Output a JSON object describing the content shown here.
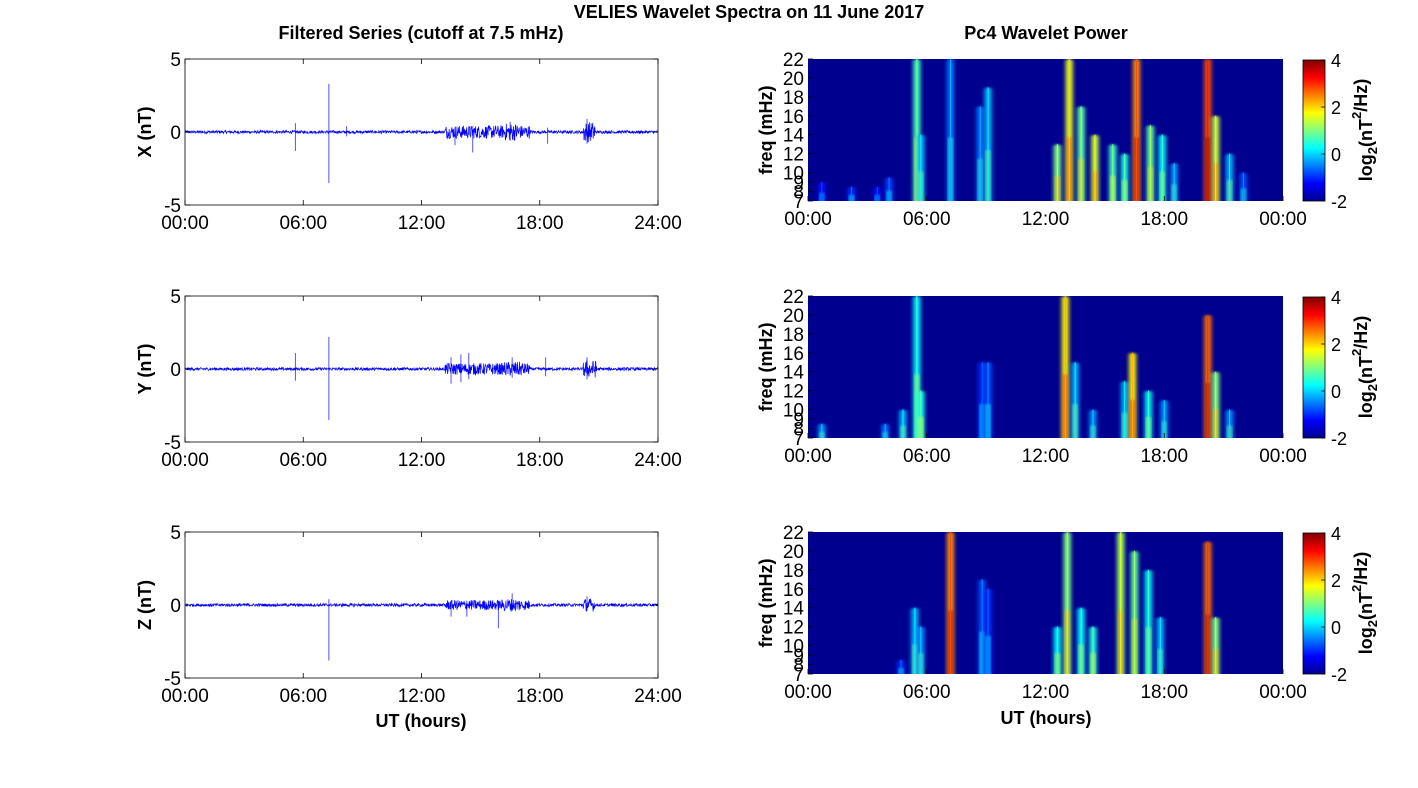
{
  "figure": {
    "title": "VELIES Wavelet Spectra on 11 June 2017",
    "left_title": "Filtered Series (cutoff at 7.5 mHz)",
    "right_title": "Pc4 Wavelet Power",
    "xlabel": "UT (hours)"
  },
  "colors": {
    "trace": "#0000ff",
    "background": "#00008f",
    "colormap": "jet"
  },
  "chart_data": [
    {
      "type": "line",
      "component": "X",
      "ylabel": "X (nT)",
      "xlim": [
        "00:00",
        "24:00"
      ],
      "ylim": [
        -5,
        5
      ],
      "xticks": [
        "00:00",
        "06:00",
        "12:00",
        "18:00",
        "24:00"
      ],
      "yticks": [
        "-5",
        "0",
        "5"
      ],
      "baseline_amplitude": 0.1,
      "spikes": [
        {
          "t": 5.6,
          "min": -1.3,
          "max": 0.6
        },
        {
          "t": 7.3,
          "min": -3.5,
          "max": 3.3
        },
        {
          "t": 8.2,
          "min": -0.3,
          "max": 0.4
        },
        {
          "t": 13.7,
          "min": -0.9,
          "max": 0.3
        },
        {
          "t": 14.6,
          "min": -1.4,
          "max": 0.4
        },
        {
          "t": 16.5,
          "min": -0.6,
          "max": 0.7
        },
        {
          "t": 18.4,
          "min": -0.8,
          "max": 0.3
        },
        {
          "t": 20.4,
          "min": -0.8,
          "max": 0.9
        }
      ],
      "active_intervals": [
        [
          13.2,
          17.5,
          0.45
        ],
        [
          16.2,
          17.0,
          0.6
        ],
        [
          20.2,
          20.8,
          0.7
        ]
      ]
    },
    {
      "type": "line",
      "component": "Y",
      "ylabel": "Y (nT)",
      "xlim": [
        "00:00",
        "24:00"
      ],
      "ylim": [
        -5,
        5
      ],
      "xticks": [
        "00:00",
        "06:00",
        "12:00",
        "18:00",
        "24:00"
      ],
      "yticks": [
        "-5",
        "0",
        "5"
      ],
      "baseline_amplitude": 0.1,
      "spikes": [
        {
          "t": 5.6,
          "min": -0.8,
          "max": 1.1
        },
        {
          "t": 7.3,
          "min": -3.5,
          "max": 2.2
        },
        {
          "t": 13.5,
          "min": -1.0,
          "max": 0.8
        },
        {
          "t": 14.0,
          "min": -0.9,
          "max": 1.0
        },
        {
          "t": 14.4,
          "min": -0.7,
          "max": 1.1
        },
        {
          "t": 16.6,
          "min": -0.6,
          "max": 0.8
        },
        {
          "t": 18.3,
          "min": -0.5,
          "max": 0.8
        },
        {
          "t": 20.4,
          "min": -0.7,
          "max": 0.8
        }
      ],
      "active_intervals": [
        [
          13.2,
          17.5,
          0.4
        ],
        [
          16.2,
          17.2,
          0.5
        ],
        [
          20.2,
          20.9,
          0.6
        ]
      ]
    },
    {
      "type": "line",
      "component": "Z",
      "ylabel": "Z (nT)",
      "xlim": [
        "00:00",
        "24:00"
      ],
      "ylim": [
        -5,
        5
      ],
      "xticks": [
        "00:00",
        "06:00",
        "12:00",
        "18:00",
        "24:00"
      ],
      "yticks": [
        "-5",
        "0",
        "5"
      ],
      "baseline_amplitude": 0.1,
      "spikes": [
        {
          "t": 7.3,
          "min": -3.8,
          "max": 0.4
        },
        {
          "t": 13.5,
          "min": -0.8,
          "max": 0.3
        },
        {
          "t": 14.3,
          "min": -0.8,
          "max": 0.3
        },
        {
          "t": 15.9,
          "min": -1.6,
          "max": 0.3
        },
        {
          "t": 16.6,
          "min": -0.4,
          "max": 0.8
        },
        {
          "t": 20.4,
          "min": -0.4,
          "max": 0.6
        }
      ],
      "active_intervals": [
        [
          13.2,
          17.5,
          0.35
        ],
        [
          16.2,
          17.0,
          0.45
        ],
        [
          20.2,
          20.8,
          0.45
        ]
      ]
    },
    {
      "type": "heatmap",
      "component": "X",
      "ylabel": "freq (mHz)",
      "colorbar_label": "log2(nT^2/Hz)",
      "xlim": [
        "00:00",
        "00:00"
      ],
      "ylim": [
        7,
        22
      ],
      "xticks": [
        "00:00",
        "06:00",
        "12:00",
        "18:00",
        "00:00"
      ],
      "yticks": [
        "22",
        "20",
        "18",
        "16",
        "14",
        "12",
        "10",
        "9",
        "8",
        "7"
      ],
      "clim": [
        -2,
        4
      ],
      "cticks": [
        "4",
        "2",
        "0",
        "-2"
      ],
      "features": [
        {
          "t": 0.7,
          "fmax": 9.0,
          "power": 0.0
        },
        {
          "t": 2.2,
          "fmax": 8.5,
          "power": 0.2
        },
        {
          "t": 3.5,
          "fmax": 8.5,
          "power": 0.0
        },
        {
          "t": 4.1,
          "fmax": 9.5,
          "power": 0.3
        },
        {
          "t": 5.5,
          "fmax": 22,
          "power": 1.8
        },
        {
          "t": 5.7,
          "fmax": 14,
          "power": 1.0
        },
        {
          "t": 7.2,
          "fmax": 22,
          "power": 0.6
        },
        {
          "t": 8.7,
          "fmax": 17,
          "power": 0.6
        },
        {
          "t": 9.1,
          "fmax": 19,
          "power": 1.0
        },
        {
          "t": 12.6,
          "fmax": 13,
          "power": 2.2
        },
        {
          "t": 13.2,
          "fmax": 22,
          "power": 2.8
        },
        {
          "t": 13.8,
          "fmax": 17,
          "power": 2.0
        },
        {
          "t": 14.5,
          "fmax": 14,
          "power": 2.6
        },
        {
          "t": 15.4,
          "fmax": 13,
          "power": 1.8
        },
        {
          "t": 16.0,
          "fmax": 12,
          "power": 1.6
        },
        {
          "t": 16.6,
          "fmax": 22,
          "power": 3.6
        },
        {
          "t": 17.3,
          "fmax": 15,
          "power": 2.0
        },
        {
          "t": 17.9,
          "fmax": 14,
          "power": 1.4
        },
        {
          "t": 18.5,
          "fmax": 11,
          "power": 0.8
        },
        {
          "t": 20.2,
          "fmax": 22,
          "power": 4.0
        },
        {
          "t": 20.6,
          "fmax": 16,
          "power": 2.6
        },
        {
          "t": 21.3,
          "fmax": 12,
          "power": 1.0
        },
        {
          "t": 22.0,
          "fmax": 10,
          "power": 0.4
        }
      ]
    },
    {
      "type": "heatmap",
      "component": "Y",
      "ylabel": "freq (mHz)",
      "colorbar_label": "log2(nT^2/Hz)",
      "xlim": [
        "00:00",
        "00:00"
      ],
      "ylim": [
        7,
        22
      ],
      "xticks": [
        "00:00",
        "06:00",
        "12:00",
        "18:00",
        "00:00"
      ],
      "yticks": [
        "22",
        "20",
        "18",
        "16",
        "14",
        "12",
        "10",
        "9",
        "8",
        "7"
      ],
      "clim": [
        -2,
        4
      ],
      "cticks": [
        "4",
        "2",
        "0",
        "-2"
      ],
      "features": [
        {
          "t": 0.7,
          "fmax": 8.5,
          "power": 0.8
        },
        {
          "t": 3.9,
          "fmax": 8.5,
          "power": 0.6
        },
        {
          "t": 4.8,
          "fmax": 10,
          "power": 1.0
        },
        {
          "t": 5.5,
          "fmax": 22,
          "power": 1.4
        },
        {
          "t": 5.7,
          "fmax": 12,
          "power": 1.6
        },
        {
          "t": 8.8,
          "fmax": 15,
          "power": 0.2
        },
        {
          "t": 9.1,
          "fmax": 15,
          "power": 0.4
        },
        {
          "t": 13.0,
          "fmax": 22,
          "power": 3.0
        },
        {
          "t": 13.5,
          "fmax": 15,
          "power": 1.0
        },
        {
          "t": 14.4,
          "fmax": 10,
          "power": 0.8
        },
        {
          "t": 16.0,
          "fmax": 13,
          "power": 1.0
        },
        {
          "t": 16.4,
          "fmax": 16,
          "power": 3.0
        },
        {
          "t": 17.2,
          "fmax": 12,
          "power": 1.4
        },
        {
          "t": 18.0,
          "fmax": 11,
          "power": 0.8
        },
        {
          "t": 20.2,
          "fmax": 20,
          "power": 3.8
        },
        {
          "t": 20.6,
          "fmax": 14,
          "power": 2.2
        },
        {
          "t": 21.3,
          "fmax": 10,
          "power": 0.8
        }
      ]
    },
    {
      "type": "heatmap",
      "component": "Z",
      "ylabel": "freq (mHz)",
      "colorbar_label": "log2(nT^2/Hz)",
      "xlim": [
        "00:00",
        "00:00"
      ],
      "ylim": [
        7,
        22
      ],
      "xticks": [
        "00:00",
        "06:00",
        "12:00",
        "18:00",
        "00:00"
      ],
      "yticks": [
        "22",
        "20",
        "18",
        "16",
        "14",
        "12",
        "10",
        "9",
        "8",
        "7"
      ],
      "clim": [
        -2,
        4
      ],
      "cticks": [
        "4",
        "2",
        "0",
        "-2"
      ],
      "features": [
        {
          "t": 4.7,
          "fmax": 8.5,
          "power": 0.2
        },
        {
          "t": 5.4,
          "fmax": 14,
          "power": 1.0
        },
        {
          "t": 5.7,
          "fmax": 12,
          "power": 0.8
        },
        {
          "t": 7.2,
          "fmax": 22,
          "power": 3.6
        },
        {
          "t": 8.8,
          "fmax": 17,
          "power": 0.4
        },
        {
          "t": 9.1,
          "fmax": 16,
          "power": 0.2
        },
        {
          "t": 12.6,
          "fmax": 12,
          "power": 1.4
        },
        {
          "t": 13.1,
          "fmax": 22,
          "power": 2.2
        },
        {
          "t": 13.8,
          "fmax": 14,
          "power": 1.4
        },
        {
          "t": 14.4,
          "fmax": 12,
          "power": 1.6
        },
        {
          "t": 15.8,
          "fmax": 22,
          "power": 2.4
        },
        {
          "t": 16.5,
          "fmax": 20,
          "power": 2.0
        },
        {
          "t": 17.2,
          "fmax": 18,
          "power": 1.4
        },
        {
          "t": 17.8,
          "fmax": 13,
          "power": 1.0
        },
        {
          "t": 20.2,
          "fmax": 21,
          "power": 3.8
        },
        {
          "t": 20.6,
          "fmax": 13,
          "power": 2.2
        }
      ]
    }
  ]
}
